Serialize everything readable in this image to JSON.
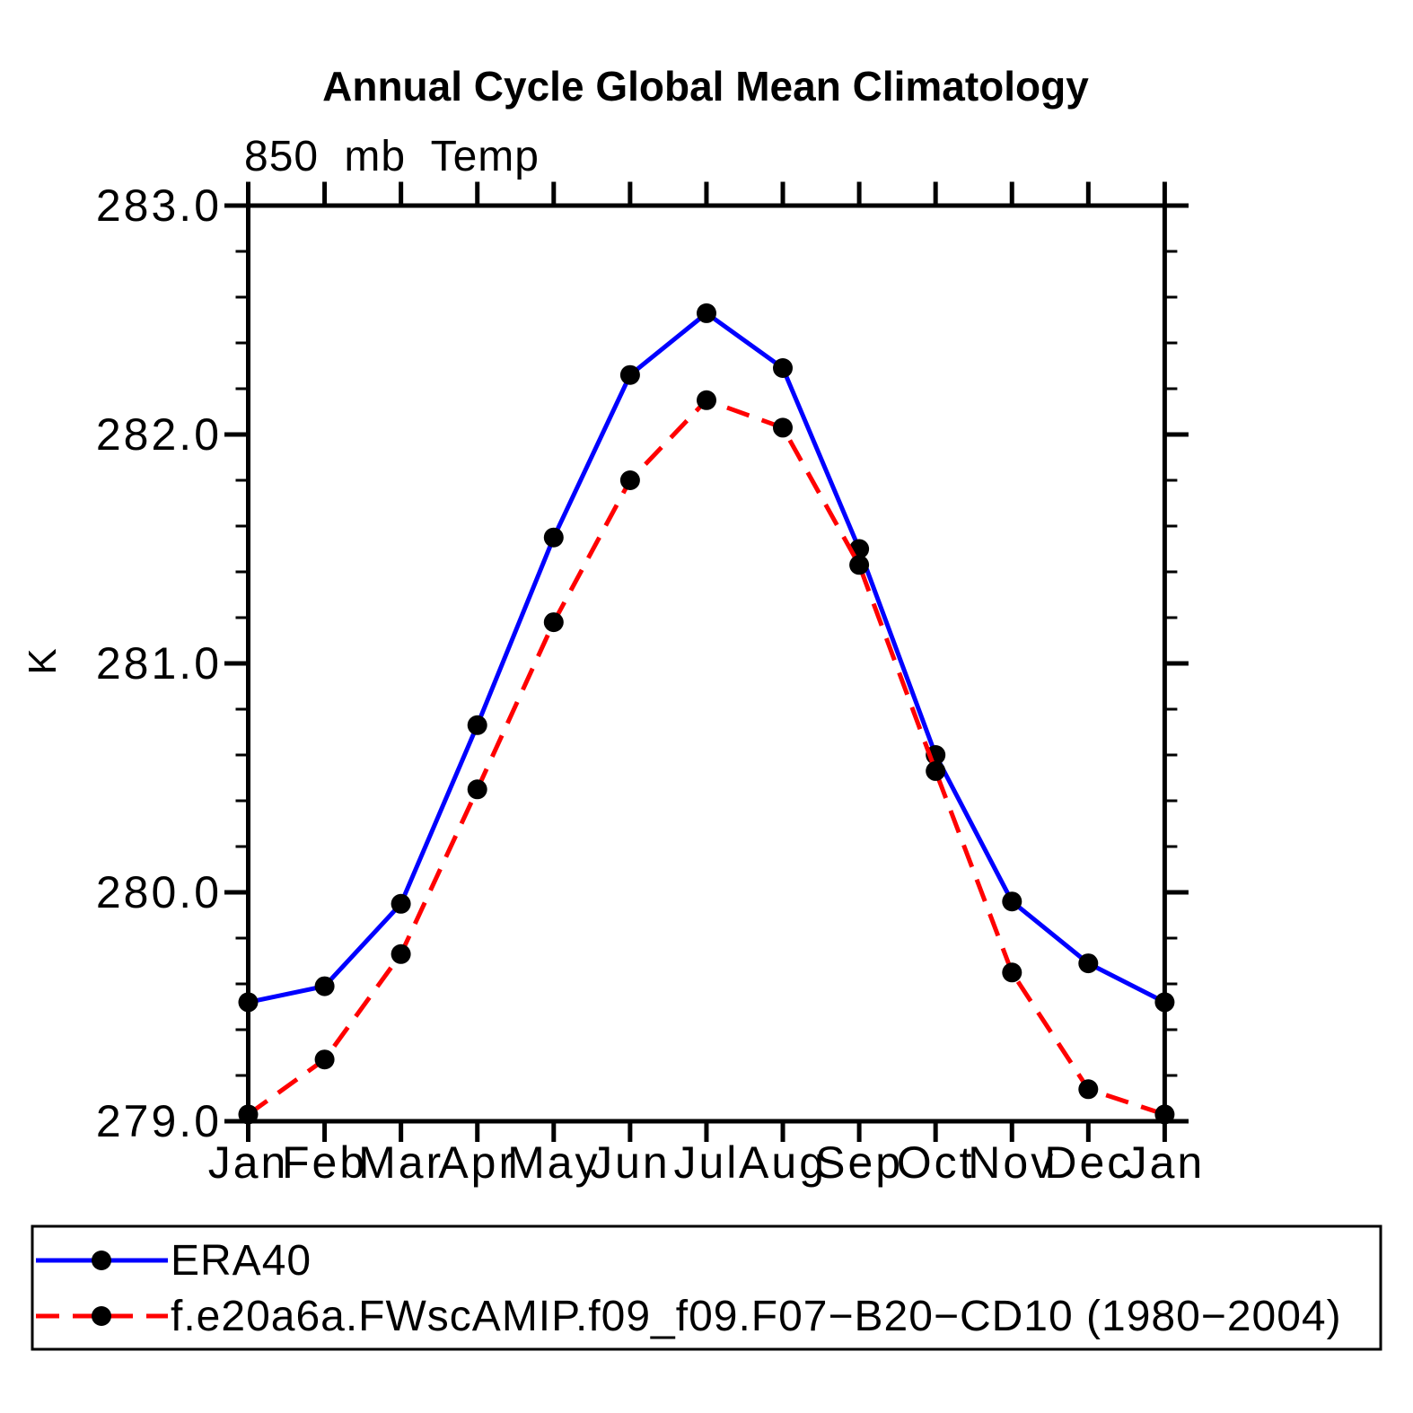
{
  "title": "Annual Cycle Global Mean Climatology",
  "subtitle": "850 mb Temp",
  "ylabel": "K",
  "legend": {
    "position": "bottom",
    "entries": [
      {
        "label": "ERA40",
        "color": "#0000ff",
        "style": "solid",
        "marker": "filled-circle",
        "marker_color": "#000000"
      },
      {
        "label": "f.e20a6a.FWscAMIP.f09_f09.F07−B20−CD10 (1980−2004)",
        "color": "#ff0000",
        "style": "dashed",
        "marker": "filled-circle",
        "marker_color": "#000000"
      }
    ]
  },
  "chart_data": {
    "type": "line",
    "title": "Annual Cycle Global Mean Climatology",
    "subtitle": "850 mb Temp",
    "xlabel": "",
    "ylabel": "K",
    "categories": [
      "Jan",
      "Feb",
      "Mar",
      "Apr",
      "May",
      "Jun",
      "Jul",
      "Aug",
      "Sep",
      "Oct",
      "Nov",
      "Dec",
      "Jan"
    ],
    "series": [
      {
        "name": "ERA40",
        "color": "#0000ff",
        "style": "solid",
        "marker": "filled-circle",
        "marker_color": "#000000",
        "values": [
          279.52,
          279.59,
          279.95,
          280.73,
          281.55,
          282.26,
          282.53,
          282.29,
          281.5,
          280.6,
          279.96,
          279.69,
          279.52
        ]
      },
      {
        "name": "f.e20a6a.FWscAMIP.f09_f09.F07−B20−CD10 (1980−2004)",
        "color": "#ff0000",
        "style": "dashed",
        "marker": "filled-circle",
        "marker_color": "#000000",
        "values": [
          279.03,
          279.27,
          279.73,
          280.45,
          281.18,
          281.8,
          282.15,
          282.03,
          281.43,
          280.53,
          279.65,
          279.14,
          279.03
        ]
      }
    ],
    "ylim": [
      279.0,
      283.0
    ],
    "ytick_major": 1.0,
    "ytick_minor": 0.2,
    "ytick_label_format": "one-decimal",
    "grid": false,
    "legend_position": "bottom",
    "axis_color": "#000000"
  }
}
